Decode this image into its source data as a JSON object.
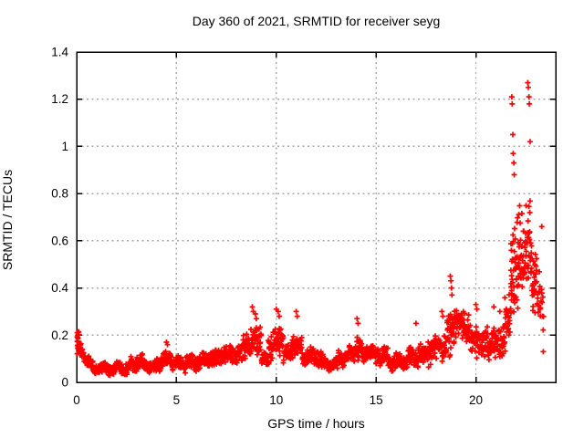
{
  "chart_data": {
    "type": "scatter",
    "title": "Day 360 of 2021, SRMTID for receiver seyg",
    "xlabel": "GPS time / hours",
    "ylabel": "SRMTID / TECUs",
    "series_name": "SRMTID",
    "xlim": [
      0,
      24
    ],
    "ylim": [
      0,
      1.4
    ],
    "xtick_values": [
      0,
      5,
      10,
      15,
      20
    ],
    "xtick_labels": [
      "0",
      "5",
      "10",
      "15",
      "20"
    ],
    "ytick_values": [
      0,
      0.2,
      0.4,
      0.6,
      0.8,
      1,
      1.2,
      1.4
    ],
    "ytick_labels": [
      "0",
      "0.2",
      "0.4",
      "0.6",
      "0.8",
      "1",
      "1.2",
      "1.4"
    ],
    "grid": true,
    "legend": "none",
    "background_color": "#ffffff",
    "axis_color": "#000000",
    "grid_color": "#a8a8a8",
    "marker": {
      "shape": "plus",
      "color": "#ff0000",
      "size": 6,
      "stroke_width": 1.7
    },
    "representation": "density_segments",
    "seed": 1234,
    "wiggle": {
      "amp": 0.012,
      "freq": 9
    },
    "y_min_clamp": 0.018,
    "y_max_clamp": 1.35,
    "segments": [
      [
        0.02,
        0.12,
        16,
        0.16,
        0.16,
        0.05
      ],
      [
        0.1,
        0.85,
        55,
        0.15,
        0.055,
        0.03
      ],
      [
        0.85,
        2.6,
        140,
        0.058,
        0.062,
        0.027
      ],
      [
        2.6,
        3.3,
        55,
        0.072,
        0.095,
        0.032
      ],
      [
        3.3,
        3.95,
        50,
        0.075,
        0.06,
        0.027
      ],
      [
        3.95,
        4.75,
        65,
        0.082,
        0.105,
        0.04
      ],
      [
        4.75,
        5.45,
        55,
        0.08,
        0.07,
        0.03
      ],
      [
        5.45,
        6.35,
        70,
        0.082,
        0.095,
        0.035
      ],
      [
        6.35,
        7.05,
        55,
        0.1,
        0.1,
        0.04
      ],
      [
        7.05,
        8.25,
        95,
        0.11,
        0.125,
        0.045
      ],
      [
        8.25,
        9.25,
        80,
        0.14,
        0.19,
        0.07
      ],
      [
        9.25,
        9.6,
        28,
        0.1,
        0.09,
        0.035
      ],
      [
        9.6,
        10.35,
        58,
        0.15,
        0.17,
        0.07
      ],
      [
        10.35,
        10.75,
        30,
        0.12,
        0.12,
        0.04
      ],
      [
        10.75,
        11.3,
        42,
        0.16,
        0.15,
        0.06
      ],
      [
        11.3,
        12.3,
        75,
        0.115,
        0.1,
        0.045
      ],
      [
        12.3,
        13.1,
        60,
        0.08,
        0.075,
        0.03
      ],
      [
        13.1,
        13.9,
        60,
        0.1,
        0.12,
        0.04
      ],
      [
        13.9,
        14.3,
        30,
        0.14,
        0.14,
        0.06
      ],
      [
        14.3,
        15.6,
        100,
        0.13,
        0.11,
        0.045
      ],
      [
        15.6,
        16.6,
        75,
        0.085,
        0.09,
        0.035
      ],
      [
        16.6,
        17.6,
        75,
        0.1,
        0.12,
        0.05
      ],
      [
        17.6,
        18.55,
        70,
        0.13,
        0.16,
        0.06
      ],
      [
        18.55,
        18.95,
        35,
        0.2,
        0.24,
        0.12
      ],
      [
        18.95,
        19.65,
        52,
        0.25,
        0.23,
        0.08
      ],
      [
        19.65,
        20.6,
        70,
        0.18,
        0.16,
        0.08
      ],
      [
        20.6,
        21.35,
        58,
        0.15,
        0.17,
        0.08
      ],
      [
        21.35,
        21.8,
        40,
        0.2,
        0.32,
        0.15
      ],
      [
        21.75,
        22.0,
        26,
        0.45,
        0.5,
        0.28
      ],
      [
        22.0,
        22.35,
        40,
        0.5,
        0.55,
        0.26
      ],
      [
        22.35,
        22.75,
        40,
        0.55,
        0.6,
        0.22
      ],
      [
        22.75,
        23.05,
        30,
        0.5,
        0.45,
        0.2
      ],
      [
        23.05,
        23.4,
        20,
        0.35,
        0.3,
        0.18
      ]
    ],
    "peak_points": [
      [
        0.03,
        0.21
      ],
      [
        0.05,
        0.2
      ],
      [
        0.06,
        0.19
      ],
      [
        4.5,
        0.17
      ],
      [
        4.55,
        0.16
      ],
      [
        8.8,
        0.32
      ],
      [
        8.85,
        0.3
      ],
      [
        8.95,
        0.29
      ],
      [
        9.0,
        0.27
      ],
      [
        10.0,
        0.31
      ],
      [
        10.1,
        0.3
      ],
      [
        10.15,
        0.28
      ],
      [
        11.0,
        0.3
      ],
      [
        11.05,
        0.28
      ],
      [
        14.05,
        0.27
      ],
      [
        14.1,
        0.25
      ],
      [
        17.0,
        0.25
      ],
      [
        18.3,
        0.3
      ],
      [
        18.35,
        0.28
      ],
      [
        18.72,
        0.45
      ],
      [
        18.75,
        0.43
      ],
      [
        18.78,
        0.4
      ],
      [
        18.8,
        0.37
      ],
      [
        20.0,
        0.33
      ],
      [
        20.05,
        0.31
      ],
      [
        20.9,
        0.32
      ],
      [
        21.2,
        0.3
      ],
      [
        21.8,
        1.21
      ],
      [
        21.82,
        1.18
      ],
      [
        21.85,
        1.05
      ],
      [
        21.87,
        0.97
      ],
      [
        21.9,
        0.93
      ],
      [
        21.92,
        0.88
      ],
      [
        22.6,
        1.27
      ],
      [
        22.63,
        1.25
      ],
      [
        22.66,
        1.21
      ],
      [
        22.68,
        1.18
      ],
      [
        22.72,
        1.02
      ],
      [
        23.3,
        0.66
      ],
      [
        23.35,
        0.28
      ],
      [
        23.38,
        0.13
      ]
    ]
  }
}
